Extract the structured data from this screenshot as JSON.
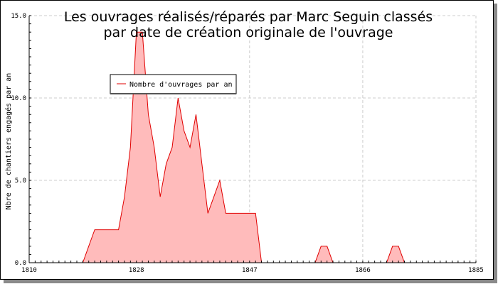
{
  "chart_data": {
    "type": "area",
    "title_lines": [
      "Les ouvrages réalisés/réparés par Marc Seguin classés",
      "par date de création originale de l'ouvrage"
    ],
    "xlabel": "",
    "ylabel": "Nbre de chantiers engagés par an",
    "xlim": [
      1810,
      1885
    ],
    "ylim": [
      0,
      15
    ],
    "x_ticks": [
      1810,
      1828,
      1847,
      1866,
      1885
    ],
    "y_ticks": [
      "0.0",
      "5.0",
      "10.0",
      "15.0"
    ],
    "grid": true,
    "legend_position": "top-left",
    "colors": {
      "line": "#e00000",
      "fill": "#ffbbbb",
      "grid": "#cccccc"
    },
    "series": [
      {
        "name": "Nombre d'ouvrages par an",
        "x": [
          1819,
          1820,
          1821,
          1822,
          1823,
          1824,
          1825,
          1826,
          1827,
          1828,
          1829,
          1830,
          1831,
          1832,
          1833,
          1834,
          1835,
          1836,
          1837,
          1838,
          1839,
          1840,
          1841,
          1842,
          1843,
          1844,
          1845,
          1846,
          1847,
          1848,
          1849,
          1858,
          1859,
          1860,
          1861,
          1870,
          1871,
          1872,
          1873
        ],
        "values": [
          0,
          1,
          2,
          2,
          2,
          2,
          2,
          4,
          7,
          14,
          14,
          9,
          7,
          4,
          6,
          7,
          10,
          8,
          7,
          9,
          6,
          3,
          4,
          5,
          3,
          3,
          3,
          3,
          3,
          3,
          0,
          0,
          1,
          1,
          0,
          0,
          1,
          1,
          0
        ]
      }
    ]
  }
}
